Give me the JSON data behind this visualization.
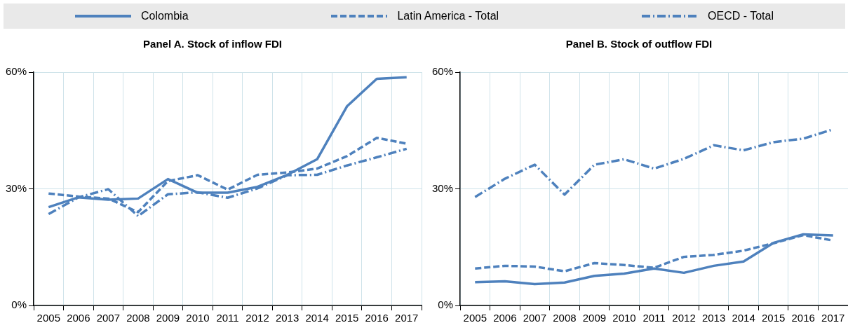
{
  "chart_data": [
    {
      "type": "line",
      "title": "Panel A. Stock of inflow FDI",
      "categories": [
        "2005",
        "2006",
        "2007",
        "2008",
        "2009",
        "2010",
        "2011",
        "2012",
        "2013",
        "2014",
        "2015",
        "2016",
        "2017"
      ],
      "ylim": [
        0,
        60
      ],
      "yticks": [
        {
          "value": 0,
          "label": "0%"
        },
        {
          "value": 30,
          "label": "30%"
        },
        {
          "value": 60,
          "label": "60%"
        }
      ],
      "grid": true,
      "legend": "top",
      "marker": "none",
      "series": [
        {
          "name": "Colombia",
          "color": "#4e81bd",
          "line_style": "solid",
          "values": [
            25.3,
            27.8,
            27.2,
            27.5,
            32.5,
            29.0,
            29.0,
            30.5,
            33.6,
            37.6,
            51.2,
            58.3,
            58.7
          ]
        },
        {
          "name": "Latin America - Total",
          "color": "#4e81bd",
          "line_style": "dashed",
          "values": [
            28.8,
            28.0,
            27.5,
            24.0,
            32.0,
            33.5,
            29.8,
            33.6,
            34.2,
            35.2,
            38.4,
            43.1,
            41.6
          ]
        },
        {
          "name": "OECD - Total",
          "color": "#4e81bd",
          "line_style": "dashdot",
          "values": [
            23.5,
            27.8,
            29.9,
            23.0,
            28.6,
            29.1,
            27.7,
            30.1,
            33.5,
            33.6,
            36.0,
            38.1,
            40.3
          ]
        }
      ]
    },
    {
      "type": "line",
      "title": "Panel B. Stock of outflow FDI",
      "categories": [
        "2005",
        "2006",
        "2007",
        "2008",
        "2009",
        "2010",
        "2011",
        "2012",
        "2013",
        "2014",
        "2015",
        "2016",
        "2017"
      ],
      "ylim": [
        0,
        60
      ],
      "yticks": [
        {
          "value": 0,
          "label": "0%"
        },
        {
          "value": 30,
          "label": "30%"
        },
        {
          "value": 60,
          "label": "60%"
        }
      ],
      "grid": true,
      "marker": "none",
      "series": [
        {
          "color": "#4e81bd",
          "line_style": "solid",
          "values": [
            6.0,
            6.2,
            5.5,
            5.9,
            7.6,
            8.2,
            9.5,
            8.4,
            10.2,
            11.3,
            16.1,
            18.3,
            18.0
          ]
        },
        {
          "color": "#4e81bd",
          "line_style": "dashed",
          "values": [
            9.5,
            10.2,
            10.0,
            8.8,
            10.9,
            10.4,
            9.7,
            12.5,
            13.0,
            14.1,
            16.0,
            18.1,
            16.7
          ]
        },
        {
          "color": "#4e81bd",
          "line_style": "dashdot",
          "values": [
            27.9,
            32.6,
            36.2,
            28.5,
            36.2,
            37.6,
            35.2,
            37.7,
            41.2,
            39.9,
            42.0,
            42.9,
            45.3
          ]
        }
      ]
    }
  ]
}
